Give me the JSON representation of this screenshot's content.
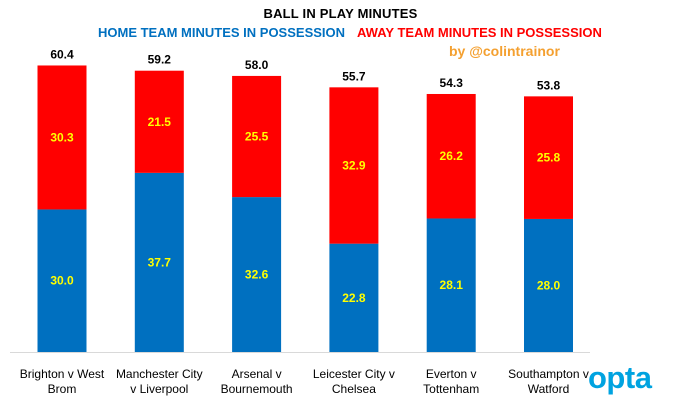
{
  "chart_data": {
    "type": "bar",
    "stacked": true,
    "title": "BALL IN PLAY MINUTES",
    "categories": [
      "Brighton v West Brom",
      "Manchester City v Liverpool",
      "Arsenal v Bournemouth",
      "Leicester City v Chelsea",
      "Everton v Tottenham",
      "Southampton v Watford"
    ],
    "category_lines": [
      [
        "Brighton v West",
        "Brom"
      ],
      [
        "Manchester City",
        "v Liverpool"
      ],
      [
        "Arsenal v",
        "Bournemouth"
      ],
      [
        "Leicester City v",
        "Chelsea"
      ],
      [
        "Everton v",
        "Tottenham"
      ],
      [
        "Southampton v",
        "Watford"
      ]
    ],
    "series": [
      {
        "name": "HOME TEAM MINUTES IN POSSESSION",
        "color": "#0070c0",
        "values": [
          30.0,
          37.7,
          32.6,
          22.8,
          28.1,
          28.0
        ]
      },
      {
        "name": "AWAY TEAM MINUTES IN POSSESSION",
        "color": "#ff0000",
        "values": [
          30.3,
          21.5,
          25.5,
          32.9,
          26.2,
          25.8
        ]
      }
    ],
    "totals": [
      60.4,
      59.2,
      58.0,
      55.7,
      54.3,
      53.8
    ],
    "segment_label_color": "#ffff00",
    "grid": false,
    "ylim": [
      0,
      60.4
    ]
  },
  "byline": "by @colintrainor",
  "byline_color": "#f4a030",
  "logo_text": "opta",
  "logo_color": "#00a3e0"
}
